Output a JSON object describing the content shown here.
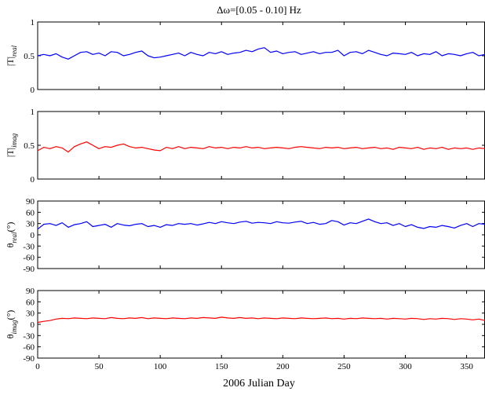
{
  "chart_data": {
    "type": "line",
    "title": "Δω=[0.05 - 0.10] Hz",
    "xlabel": "2006 Julian Day",
    "xlim": [
      0,
      365
    ],
    "xticks": [
      0,
      50,
      100,
      150,
      200,
      250,
      300,
      350
    ],
    "panels": [
      {
        "id": "real-magnitude",
        "ylabel_main": "|T|",
        "ylabel_sub": "real",
        "ylim": [
          0,
          1
        ],
        "yticks": [
          0,
          0.5,
          1
        ],
        "ytick_labels": [
          "0",
          "0.5",
          "1"
        ],
        "color": "#0000ff",
        "series": {
          "x": [
            0,
            5,
            10,
            15,
            20,
            25,
            30,
            35,
            40,
            45,
            50,
            55,
            60,
            65,
            70,
            75,
            80,
            85,
            90,
            95,
            100,
            105,
            110,
            115,
            120,
            125,
            130,
            135,
            140,
            145,
            150,
            155,
            160,
            165,
            170,
            175,
            180,
            185,
            190,
            195,
            200,
            205,
            210,
            215,
            220,
            225,
            230,
            235,
            240,
            245,
            250,
            255,
            260,
            265,
            270,
            275,
            280,
            285,
            290,
            295,
            300,
            305,
            310,
            315,
            320,
            325,
            330,
            335,
            340,
            345,
            350,
            355,
            360,
            365
          ],
          "values": [
            0.5,
            0.52,
            0.5,
            0.53,
            0.48,
            0.45,
            0.5,
            0.55,
            0.56,
            0.52,
            0.54,
            0.5,
            0.56,
            0.55,
            0.5,
            0.52,
            0.55,
            0.57,
            0.5,
            0.47,
            0.48,
            0.5,
            0.52,
            0.54,
            0.5,
            0.55,
            0.52,
            0.5,
            0.55,
            0.53,
            0.56,
            0.52,
            0.54,
            0.55,
            0.58,
            0.56,
            0.6,
            0.62,
            0.55,
            0.57,
            0.53,
            0.55,
            0.56,
            0.52,
            0.54,
            0.56,
            0.53,
            0.55,
            0.55,
            0.58,
            0.5,
            0.55,
            0.56,
            0.53,
            0.58,
            0.55,
            0.52,
            0.5,
            0.54,
            0.53,
            0.52,
            0.55,
            0.5,
            0.53,
            0.52,
            0.56,
            0.5,
            0.53,
            0.52,
            0.5,
            0.53,
            0.55,
            0.5,
            0.52
          ]
        }
      },
      {
        "id": "imag-magnitude",
        "ylabel_main": "|T|",
        "ylabel_sub": "imag",
        "ylim": [
          0,
          1
        ],
        "yticks": [
          0,
          0.5,
          1
        ],
        "ytick_labels": [
          "0",
          "0.5",
          "1"
        ],
        "color": "#ff0000",
        "series": {
          "x": [
            0,
            5,
            10,
            15,
            20,
            25,
            30,
            35,
            40,
            45,
            50,
            55,
            60,
            65,
            70,
            75,
            80,
            85,
            90,
            95,
            100,
            105,
            110,
            115,
            120,
            125,
            130,
            135,
            140,
            145,
            150,
            155,
            160,
            165,
            170,
            175,
            180,
            185,
            190,
            195,
            200,
            205,
            210,
            215,
            220,
            225,
            230,
            235,
            240,
            245,
            250,
            255,
            260,
            265,
            270,
            275,
            280,
            285,
            290,
            295,
            300,
            305,
            310,
            315,
            320,
            325,
            330,
            335,
            340,
            345,
            350,
            355,
            360,
            365
          ],
          "values": [
            0.42,
            0.47,
            0.45,
            0.48,
            0.46,
            0.4,
            0.48,
            0.52,
            0.55,
            0.5,
            0.45,
            0.48,
            0.47,
            0.5,
            0.52,
            0.48,
            0.46,
            0.47,
            0.45,
            0.43,
            0.42,
            0.47,
            0.45,
            0.48,
            0.45,
            0.47,
            0.46,
            0.45,
            0.48,
            0.46,
            0.47,
            0.45,
            0.47,
            0.46,
            0.48,
            0.46,
            0.47,
            0.45,
            0.46,
            0.47,
            0.46,
            0.45,
            0.47,
            0.48,
            0.47,
            0.46,
            0.45,
            0.47,
            0.46,
            0.47,
            0.45,
            0.46,
            0.47,
            0.45,
            0.46,
            0.47,
            0.45,
            0.46,
            0.44,
            0.47,
            0.46,
            0.45,
            0.47,
            0.44,
            0.46,
            0.45,
            0.47,
            0.44,
            0.46,
            0.45,
            0.46,
            0.44,
            0.46,
            0.45
          ]
        }
      },
      {
        "id": "real-phase",
        "ylabel_main": "θ",
        "ylabel_sub": "real",
        "ylabel_unit": "(°)",
        "ylim": [
          -90,
          90
        ],
        "yticks": [
          -90,
          -60,
          -30,
          0,
          30,
          60,
          90
        ],
        "ytick_labels": [
          "-90",
          "-60",
          "-30",
          "0",
          "30",
          "60",
          "90"
        ],
        "color": "#0000ff",
        "series": {
          "x": [
            0,
            5,
            10,
            15,
            20,
            25,
            30,
            35,
            40,
            45,
            50,
            55,
            60,
            65,
            70,
            75,
            80,
            85,
            90,
            95,
            100,
            105,
            110,
            115,
            120,
            125,
            130,
            135,
            140,
            145,
            150,
            155,
            160,
            165,
            170,
            175,
            180,
            185,
            190,
            195,
            200,
            205,
            210,
            215,
            220,
            225,
            230,
            235,
            240,
            245,
            250,
            255,
            260,
            265,
            270,
            275,
            280,
            285,
            290,
            295,
            300,
            305,
            310,
            315,
            320,
            325,
            330,
            335,
            340,
            345,
            350,
            355,
            360,
            365
          ],
          "values": [
            15,
            28,
            30,
            25,
            32,
            20,
            27,
            30,
            35,
            22,
            25,
            28,
            20,
            30,
            26,
            24,
            28,
            30,
            22,
            25,
            20,
            27,
            25,
            30,
            28,
            30,
            26,
            29,
            33,
            30,
            35,
            32,
            30,
            34,
            36,
            31,
            33,
            32,
            30,
            35,
            32,
            31,
            34,
            36,
            30,
            33,
            28,
            30,
            38,
            35,
            26,
            32,
            30,
            36,
            42,
            35,
            30,
            32,
            25,
            30,
            22,
            27,
            20,
            17,
            22,
            20,
            25,
            22,
            18,
            25,
            30,
            22,
            30,
            28
          ]
        }
      },
      {
        "id": "imag-phase",
        "ylabel_main": "θ",
        "ylabel_sub": "imag",
        "ylabel_unit": "(°)",
        "ylim": [
          -90,
          90
        ],
        "yticks": [
          -90,
          -60,
          -30,
          0,
          30,
          60,
          90
        ],
        "ytick_labels": [
          "-90",
          "-60",
          "-30",
          "0",
          "30",
          "60",
          "90"
        ],
        "color": "#ff0000",
        "series": {
          "x": [
            0,
            5,
            10,
            15,
            20,
            25,
            30,
            35,
            40,
            45,
            50,
            55,
            60,
            65,
            70,
            75,
            80,
            85,
            90,
            95,
            100,
            105,
            110,
            115,
            120,
            125,
            130,
            135,
            140,
            145,
            150,
            155,
            160,
            165,
            170,
            175,
            180,
            185,
            190,
            195,
            200,
            205,
            210,
            215,
            220,
            225,
            230,
            235,
            240,
            245,
            250,
            255,
            260,
            265,
            270,
            275,
            280,
            285,
            290,
            295,
            300,
            305,
            310,
            315,
            320,
            325,
            330,
            335,
            340,
            345,
            350,
            355,
            360,
            365
          ],
          "values": [
            5,
            8,
            10,
            14,
            16,
            15,
            17,
            16,
            15,
            17,
            16,
            15,
            18,
            16,
            15,
            17,
            16,
            18,
            15,
            17,
            16,
            15,
            17,
            16,
            15,
            17,
            16,
            18,
            17,
            16,
            19,
            17,
            16,
            18,
            16,
            17,
            15,
            17,
            16,
            15,
            17,
            16,
            15,
            17,
            16,
            15,
            16,
            17,
            15,
            16,
            14,
            16,
            15,
            17,
            16,
            15,
            16,
            14,
            16,
            15,
            14,
            16,
            15,
            13,
            15,
            14,
            16,
            15,
            13,
            15,
            14,
            12,
            14,
            10
          ]
        }
      }
    ]
  }
}
